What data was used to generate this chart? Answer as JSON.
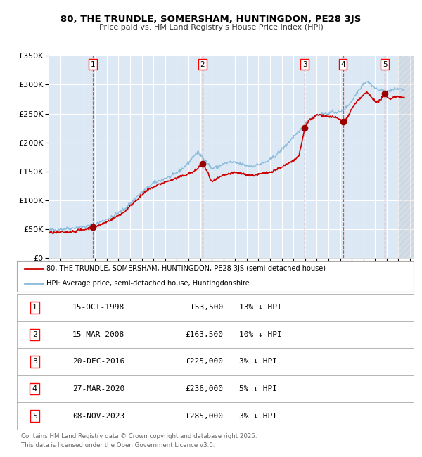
{
  "title_line1": "80, THE TRUNDLE, SOMERSHAM, HUNTINGDON, PE28 3JS",
  "title_line2": "Price paid vs. HM Land Registry's House Price Index (HPI)",
  "fig_bg_color": "#ffffff",
  "plot_bg_color": "#dce9f5",
  "grid_color": "#ffffff",
  "hpi_line_color": "#8bbcdc",
  "price_line_color": "#cc0000",
  "sale_marker_color": "#990000",
  "vline_color": "#ee3333",
  "ylabel_values": [
    "£0",
    "£50K",
    "£100K",
    "£150K",
    "£200K",
    "£250K",
    "£300K",
    "£350K"
  ],
  "ylim": [
    0,
    350000
  ],
  "xlim_start": 1995.0,
  "xlim_end": 2026.3,
  "xtick_years": [
    1995,
    1996,
    1997,
    1998,
    1999,
    2000,
    2001,
    2002,
    2003,
    2004,
    2005,
    2006,
    2007,
    2008,
    2009,
    2010,
    2011,
    2012,
    2013,
    2014,
    2015,
    2016,
    2017,
    2018,
    2019,
    2020,
    2021,
    2022,
    2023,
    2024,
    2025,
    2026
  ],
  "sales": [
    {
      "num": 1,
      "year": 1998.79,
      "price": 53500,
      "hpi_pct": "13%",
      "label": "15-OCT-1998",
      "price_str": "£53,500"
    },
    {
      "num": 2,
      "year": 2008.21,
      "price": 163500,
      "hpi_pct": "10%",
      "label": "15-MAR-2008",
      "price_str": "£163,500"
    },
    {
      "num": 3,
      "year": 2016.97,
      "price": 225000,
      "hpi_pct": "3%",
      "label": "20-DEC-2016",
      "price_str": "£225,000"
    },
    {
      "num": 4,
      "year": 2020.24,
      "price": 236000,
      "hpi_pct": "5%",
      "label": "27-MAR-2020",
      "price_str": "£236,000"
    },
    {
      "num": 5,
      "year": 2023.85,
      "price": 285000,
      "hpi_pct": "3%",
      "label": "08-NOV-2023",
      "price_str": "£285,000"
    }
  ],
  "legend_label_price": "80, THE TRUNDLE, SOMERSHAM, HUNTINGDON, PE28 3JS (semi-detached house)",
  "legend_label_hpi": "HPI: Average price, semi-detached house, Huntingdonshire",
  "footer_line1": "Contains HM Land Registry data © Crown copyright and database right 2025.",
  "footer_line2": "This data is licensed under the Open Government Licence v3.0.",
  "hatch_start": 2025.0,
  "hpi_anchors": [
    [
      1995.0,
      48000
    ],
    [
      1996.0,
      50000
    ],
    [
      1997.0,
      52000
    ],
    [
      1998.0,
      54000
    ],
    [
      1999.0,
      58000
    ],
    [
      1999.5,
      63000
    ],
    [
      2000.5,
      72000
    ],
    [
      2001.5,
      85000
    ],
    [
      2002.5,
      105000
    ],
    [
      2003.5,
      122000
    ],
    [
      2004.0,
      130000
    ],
    [
      2005.0,
      138000
    ],
    [
      2005.5,
      141000
    ],
    [
      2006.5,
      155000
    ],
    [
      2007.0,
      165000
    ],
    [
      2007.5,
      178000
    ],
    [
      2007.8,
      183000
    ],
    [
      2008.5,
      168000
    ],
    [
      2009.0,
      155000
    ],
    [
      2009.5,
      158000
    ],
    [
      2010.0,
      163000
    ],
    [
      2010.5,
      166000
    ],
    [
      2011.0,
      165000
    ],
    [
      2011.5,
      163000
    ],
    [
      2012.0,
      160000
    ],
    [
      2012.5,
      159000
    ],
    [
      2013.0,
      162000
    ],
    [
      2013.5,
      165000
    ],
    [
      2014.0,
      170000
    ],
    [
      2014.5,
      178000
    ],
    [
      2015.0,
      188000
    ],
    [
      2015.5,
      198000
    ],
    [
      2016.0,
      210000
    ],
    [
      2016.5,
      218000
    ],
    [
      2017.0,
      232000
    ],
    [
      2017.5,
      242000
    ],
    [
      2018.0,
      248000
    ],
    [
      2018.5,
      250000
    ],
    [
      2019.0,
      250000
    ],
    [
      2019.5,
      253000
    ],
    [
      2020.0,
      252000
    ],
    [
      2020.5,
      260000
    ],
    [
      2021.0,
      272000
    ],
    [
      2021.5,
      288000
    ],
    [
      2022.0,
      302000
    ],
    [
      2022.3,
      306000
    ],
    [
      2022.7,
      300000
    ],
    [
      2023.0,
      294000
    ],
    [
      2023.3,
      291000
    ],
    [
      2023.7,
      289000
    ],
    [
      2024.0,
      287000
    ],
    [
      2024.3,
      290000
    ],
    [
      2024.7,
      292000
    ],
    [
      2025.0,
      293000
    ],
    [
      2025.5,
      291000
    ]
  ],
  "price_anchors": [
    [
      1995.0,
      44000
    ],
    [
      1996.0,
      44500
    ],
    [
      1997.0,
      46000
    ],
    [
      1997.5,
      48000
    ],
    [
      1998.0,
      49000
    ],
    [
      1998.79,
      53500
    ],
    [
      1999.5,
      58000
    ],
    [
      2000.5,
      68000
    ],
    [
      2001.5,
      80000
    ],
    [
      2002.5,
      100000
    ],
    [
      2003.5,
      118000
    ],
    [
      2004.5,
      128000
    ],
    [
      2005.5,
      135000
    ],
    [
      2006.5,
      142000
    ],
    [
      2007.0,
      146000
    ],
    [
      2007.5,
      150000
    ],
    [
      2008.21,
      163500
    ],
    [
      2008.6,
      150000
    ],
    [
      2009.0,
      132000
    ],
    [
      2009.5,
      138000
    ],
    [
      2010.0,
      143000
    ],
    [
      2010.5,
      146000
    ],
    [
      2011.0,
      148000
    ],
    [
      2011.5,
      147000
    ],
    [
      2012.0,
      144000
    ],
    [
      2012.5,
      143000
    ],
    [
      2013.0,
      145000
    ],
    [
      2013.5,
      147000
    ],
    [
      2014.0,
      149000
    ],
    [
      2014.5,
      153000
    ],
    [
      2015.0,
      158000
    ],
    [
      2015.5,
      163000
    ],
    [
      2016.0,
      168000
    ],
    [
      2016.5,
      178000
    ],
    [
      2016.97,
      225000
    ],
    [
      2017.3,
      238000
    ],
    [
      2017.7,
      242000
    ],
    [
      2018.0,
      248000
    ],
    [
      2018.5,
      247000
    ],
    [
      2019.0,
      245000
    ],
    [
      2019.5,
      244000
    ],
    [
      2020.0,
      240000
    ],
    [
      2020.24,
      236000
    ],
    [
      2020.6,
      242000
    ],
    [
      2021.0,
      258000
    ],
    [
      2021.5,
      272000
    ],
    [
      2022.0,
      282000
    ],
    [
      2022.3,
      287000
    ],
    [
      2022.7,
      278000
    ],
    [
      2023.0,
      272000
    ],
    [
      2023.3,
      270000
    ],
    [
      2023.85,
      285000
    ],
    [
      2024.0,
      278000
    ],
    [
      2024.3,
      276000
    ],
    [
      2024.7,
      279000
    ],
    [
      2025.0,
      280000
    ],
    [
      2025.5,
      277000
    ]
  ]
}
